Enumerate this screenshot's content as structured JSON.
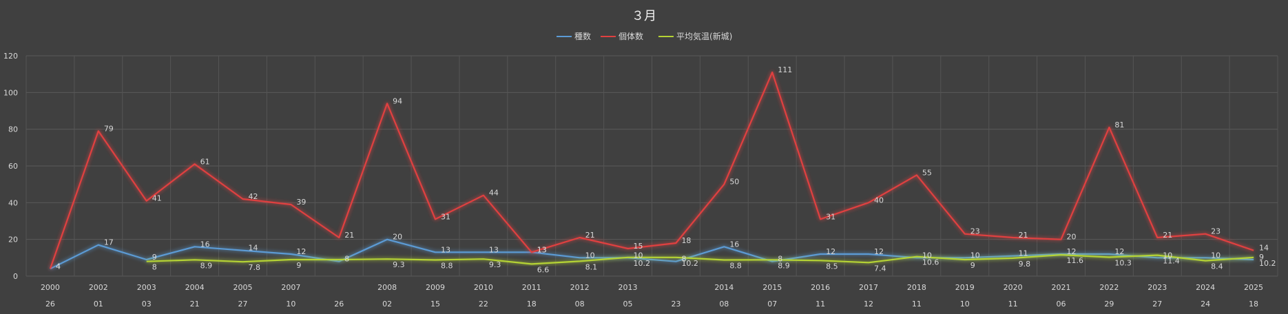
{
  "chart_data": {
    "type": "line",
    "title": "３月",
    "xlabel": "",
    "ylabel": "",
    "ylim": [
      0,
      120
    ],
    "yticks": [
      0,
      20,
      40,
      60,
      80,
      100,
      120
    ],
    "grid": true,
    "legend_position": "top",
    "categories": [
      {
        "year": "2000",
        "day": "26"
      },
      {
        "year": "2002",
        "day": "01"
      },
      {
        "year": "2003",
        "day": "03"
      },
      {
        "year": "2004",
        "day": "21"
      },
      {
        "year": "2005",
        "day": "27"
      },
      {
        "year": "2007",
        "day": "10"
      },
      {
        "year": "",
        "day": "26"
      },
      {
        "year": "2008",
        "day": "02"
      },
      {
        "year": "2009",
        "day": "15"
      },
      {
        "year": "2010",
        "day": "22"
      },
      {
        "year": "2011",
        "day": "18"
      },
      {
        "year": "2012",
        "day": "08"
      },
      {
        "year": "2013",
        "day": "05"
      },
      {
        "year": "",
        "day": "23"
      },
      {
        "year": "2014",
        "day": "08"
      },
      {
        "year": "2015",
        "day": "07"
      },
      {
        "year": "2016",
        "day": "11"
      },
      {
        "year": "2017",
        "day": "12"
      },
      {
        "year": "2018",
        "day": "11"
      },
      {
        "year": "2019",
        "day": "10"
      },
      {
        "year": "2020",
        "day": "11"
      },
      {
        "year": "2021",
        "day": "06"
      },
      {
        "year": "2022",
        "day": "29"
      },
      {
        "year": "2023",
        "day": "27"
      },
      {
        "year": "2024",
        "day": "24"
      },
      {
        "year": "2025",
        "day": "18"
      }
    ],
    "series": [
      {
        "name": "種数",
        "color": "#5b9bd5",
        "values": [
          4,
          17,
          9,
          16,
          14,
          12,
          8,
          20,
          13,
          13,
          13,
          10,
          10,
          8,
          16,
          8,
          12,
          12,
          10,
          10,
          11,
          12,
          12,
          10,
          10,
          9
        ],
        "labels": [
          "4",
          "17",
          "9",
          "16",
          "14",
          "12",
          "8",
          "20",
          "13",
          "13",
          "13",
          "10",
          "10",
          "8",
          "16",
          "8",
          "12",
          "12",
          "10",
          "10",
          "11",
          "12",
          "12",
          "10",
          "10",
          "9"
        ]
      },
      {
        "name": "個体数",
        "color": "#e04040",
        "values": [
          4,
          79,
          41,
          61,
          42,
          39,
          21,
          94,
          31,
          44,
          13,
          21,
          15,
          18,
          50,
          111,
          31,
          40,
          55,
          23,
          21,
          20,
          81,
          21,
          23,
          14
        ],
        "labels": [
          "4",
          "79",
          "41",
          "61",
          "42",
          "39",
          "21",
          "94",
          "31",
          "44",
          "13",
          "21",
          "15",
          "18",
          "50",
          "111",
          "31",
          "40",
          "55",
          "23",
          "21",
          "20",
          "81",
          "21",
          "23",
          "14"
        ]
      },
      {
        "name": "平均気温(新城)",
        "color": "#b5d334",
        "start_index": 2,
        "values": [
          null,
          null,
          8,
          8.9,
          7.8,
          9,
          9,
          9.3,
          8.8,
          9.3,
          6.6,
          8.1,
          10.2,
          10.2,
          8.8,
          8.9,
          8.5,
          7.4,
          10.6,
          9,
          9.8,
          11.6,
          10.3,
          11.4,
          8.4,
          10.2
        ],
        "labels": [
          "",
          "",
          "8",
          "8.9",
          "7.8",
          "9",
          "",
          "9.3",
          "8.8",
          "9.3",
          "6.6",
          "8.1",
          "10.2",
          "10.2",
          "8.8",
          "8.9",
          "8.5",
          "7.4",
          "10.6",
          "9",
          "9.8",
          "11.6",
          "10.3",
          "11.4",
          "8.4",
          "10.2"
        ]
      }
    ]
  }
}
